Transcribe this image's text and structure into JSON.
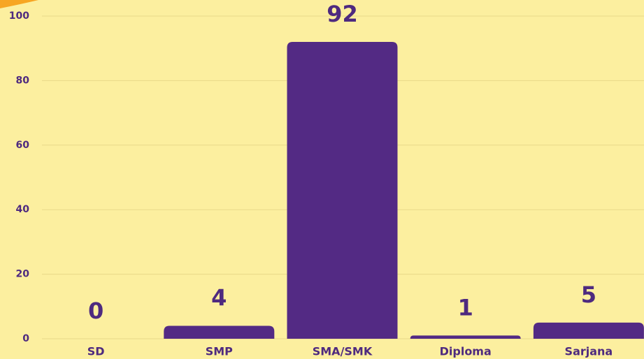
{
  "chart_data": {
    "type": "bar",
    "categories": [
      "SD",
      "SMP",
      "SMA/SMK",
      "Diploma",
      "Sarjana"
    ],
    "values": [
      0,
      4,
      92,
      1,
      5
    ],
    "color": "#532a84",
    "ylim": [
      0,
      100
    ],
    "yticks": [
      0,
      20,
      40,
      60,
      80,
      100
    ],
    "grid": true
  }
}
